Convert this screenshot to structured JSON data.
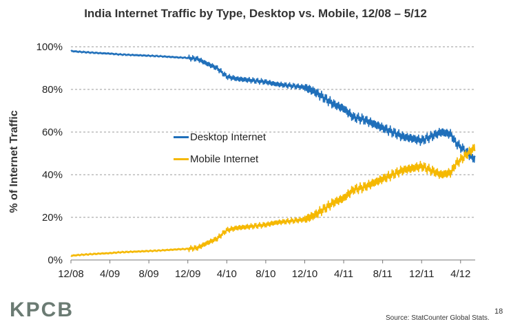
{
  "title": "India Internet Traffic by Type, Desktop vs. Mobile, 12/08 – 5/12",
  "logo_text": "KPCB",
  "source": "Source: StatCounter Global Stats.",
  "page_number": "18",
  "chart_data": {
    "type": "line",
    "title": "India Internet Traffic by Type, Desktop vs. Mobile, 12/08 – 5/12",
    "ylabel": "% of Internet Traffic",
    "xlabel": "",
    "ylim": [
      0,
      100
    ],
    "xlim": [
      0,
      41.5
    ],
    "x_ticks": [
      0,
      4,
      8,
      12,
      16,
      20,
      24,
      28,
      32,
      36,
      40
    ],
    "x_tick_labels": [
      "12/08",
      "4/09",
      "8/09",
      "12/09",
      "4/10",
      "8/10",
      "12/10",
      "4/11",
      "8/11",
      "12/11",
      "4/12"
    ],
    "y_ticks": [
      0,
      20,
      40,
      60,
      80,
      100
    ],
    "y_tick_labels": [
      "0%",
      "20%",
      "40%",
      "60%",
      "80%",
      "100%"
    ],
    "grid": true,
    "legend_position": "center",
    "series": [
      {
        "name": "Desktop Internet",
        "color": "#1f6fba",
        "x": [
          0,
          1,
          2,
          3,
          4,
          5,
          6,
          7,
          8,
          9,
          10,
          11,
          12,
          13,
          14,
          15,
          15.5,
          16,
          17,
          18,
          19,
          20,
          21,
          22,
          23,
          24,
          25,
          26,
          27,
          28,
          29,
          30,
          31,
          32,
          33,
          34,
          35,
          36,
          37,
          38,
          39,
          39.5,
          40,
          41,
          41.5
        ],
        "values": [
          98,
          97.6,
          97.3,
          97,
          96.8,
          96.4,
          96.2,
          96,
          95.8,
          95.6,
          95.3,
          95,
          94.8,
          94.3,
          92,
          90,
          88,
          86,
          85,
          84.5,
          84,
          83.5,
          82.5,
          82,
          81.5,
          81,
          79,
          76,
          73,
          71,
          67,
          66,
          64,
          62,
          60,
          58,
          57,
          56,
          58,
          60,
          59,
          55,
          53,
          49,
          47
        ]
      },
      {
        "name": "Mobile Internet",
        "color": "#f5b800",
        "x": [
          0,
          1,
          2,
          3,
          4,
          5,
          6,
          7,
          8,
          9,
          10,
          11,
          12,
          13,
          14,
          15,
          15.5,
          16,
          17,
          18,
          19,
          20,
          21,
          22,
          23,
          24,
          25,
          26,
          27,
          28,
          29,
          30,
          31,
          32,
          33,
          34,
          35,
          36,
          37,
          38,
          39,
          39.5,
          40,
          41,
          41.5
        ],
        "values": [
          2,
          2.4,
          2.7,
          3,
          3.2,
          3.6,
          3.8,
          4,
          4.2,
          4.4,
          4.7,
          5,
          5.2,
          5.7,
          8,
          10,
          12,
          14,
          15,
          15.5,
          16,
          16.5,
          17.5,
          18,
          18.5,
          19,
          21,
          24,
          27,
          29,
          33,
          34,
          36,
          38,
          40,
          42,
          43,
          44,
          42,
          40,
          41,
          45,
          47,
          51,
          53
        ]
      }
    ]
  }
}
